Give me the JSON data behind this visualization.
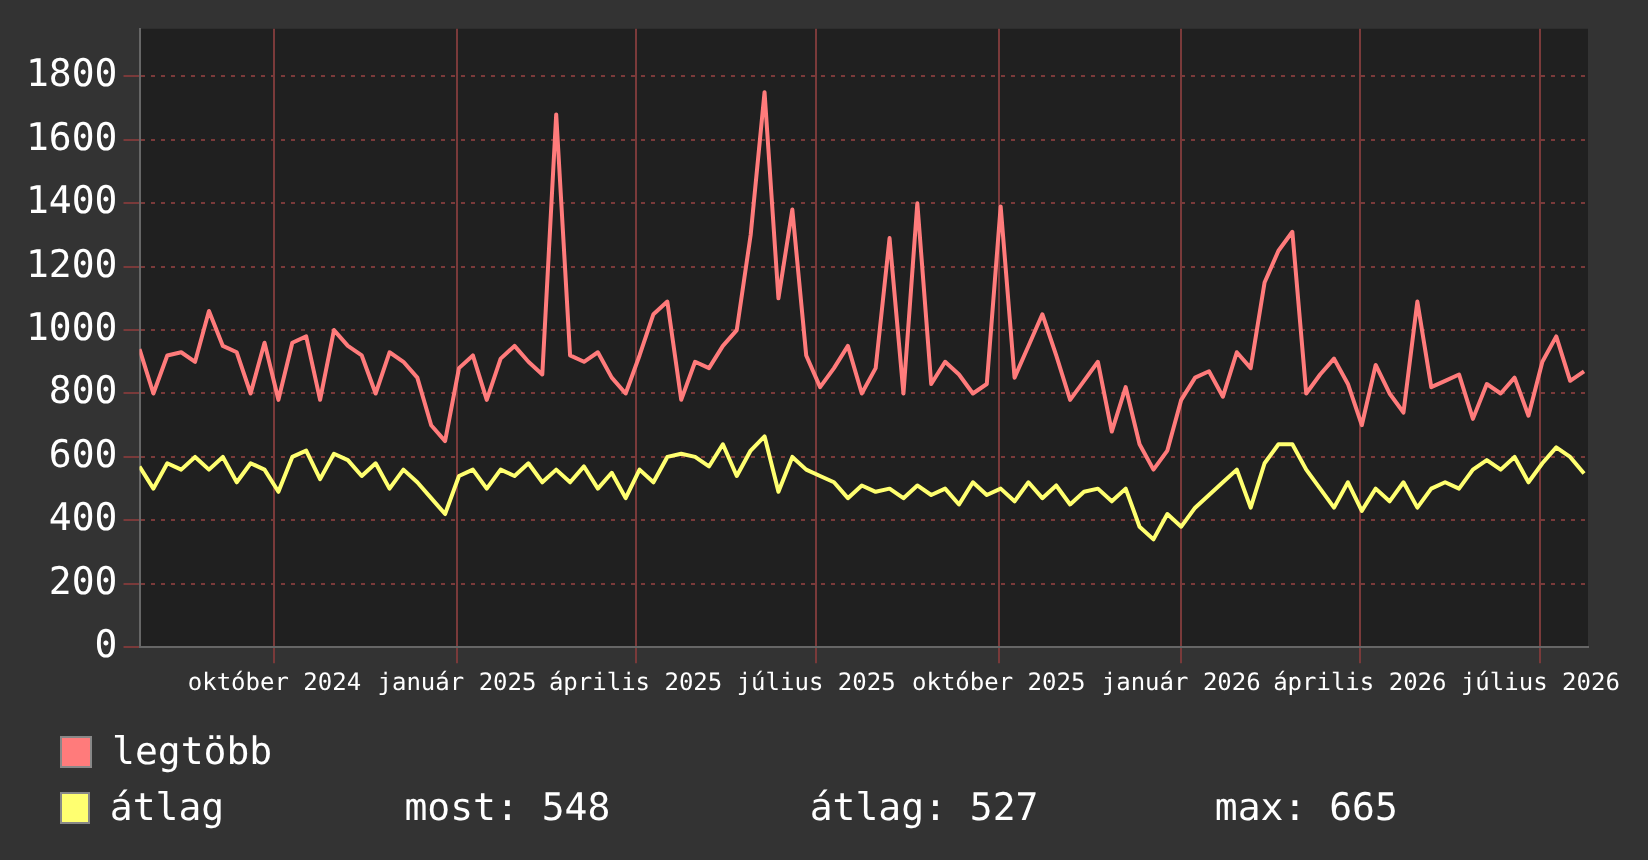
{
  "chart_data": {
    "type": "line",
    "x": [
      "2024-07-25",
      "2024-08-01",
      "2024-08-08",
      "2024-08-15",
      "2024-08-22",
      "2024-08-29",
      "2024-09-05",
      "2024-09-12",
      "2024-09-19",
      "2024-09-26",
      "2024-10-03",
      "2024-10-10",
      "2024-10-17",
      "2024-10-24",
      "2024-10-31",
      "2024-11-07",
      "2024-11-14",
      "2024-11-21",
      "2024-11-28",
      "2024-12-05",
      "2024-12-12",
      "2024-12-19",
      "2024-12-26",
      "2025-01-02",
      "2025-01-09",
      "2025-01-16",
      "2025-01-23",
      "2025-01-30",
      "2025-02-06",
      "2025-02-13",
      "2025-02-20",
      "2025-02-27",
      "2025-03-06",
      "2025-03-13",
      "2025-03-20",
      "2025-03-27",
      "2025-04-03",
      "2025-04-10",
      "2025-04-17",
      "2025-04-24",
      "2025-05-01",
      "2025-05-08",
      "2025-05-15",
      "2025-05-22",
      "2025-05-29",
      "2025-06-05",
      "2025-06-12",
      "2025-06-19",
      "2025-06-26",
      "2025-07-03",
      "2025-07-10",
      "2025-07-17",
      "2025-07-24",
      "2025-07-31",
      "2025-08-07",
      "2025-08-14",
      "2025-08-21",
      "2025-08-28",
      "2025-09-04",
      "2025-09-11",
      "2025-09-18",
      "2025-09-25",
      "2025-10-02",
      "2025-10-09",
      "2025-10-16",
      "2025-10-23",
      "2025-10-30",
      "2025-11-06",
      "2025-11-13",
      "2025-11-20",
      "2025-11-27",
      "2025-12-04",
      "2025-12-11",
      "2025-12-18",
      "2025-12-25",
      "2026-01-01",
      "2026-01-08",
      "2026-01-15",
      "2026-01-22",
      "2026-01-29",
      "2026-02-05",
      "2026-02-12",
      "2026-02-19",
      "2026-02-26",
      "2026-03-05",
      "2026-03-12",
      "2026-03-19",
      "2026-03-26",
      "2026-04-02",
      "2026-04-09",
      "2026-04-16",
      "2026-04-23",
      "2026-04-30",
      "2026-05-07",
      "2026-05-14",
      "2026-05-21",
      "2026-05-28",
      "2026-06-04",
      "2026-06-11",
      "2026-06-18",
      "2026-06-25",
      "2026-07-02",
      "2026-07-09",
      "2026-07-16",
      "2026-07-23"
    ],
    "series": [
      {
        "name": "legtöbb",
        "color": "#ff7b7b",
        "values": [
          940,
          800,
          920,
          930,
          900,
          1060,
          950,
          930,
          800,
          960,
          780,
          960,
          980,
          780,
          1000,
          950,
          920,
          800,
          930,
          900,
          850,
          700,
          650,
          880,
          920,
          780,
          910,
          950,
          900,
          860,
          1680,
          920,
          900,
          930,
          850,
          800,
          920,
          1050,
          1090,
          780,
          900,
          880,
          950,
          1000,
          1300,
          1750,
          1100,
          1380,
          920,
          820,
          880,
          950,
          800,
          880,
          1290,
          800,
          1400,
          830,
          900,
          860,
          800,
          830,
          1390,
          850,
          950,
          1050,
          920,
          780,
          840,
          900,
          680,
          820,
          640,
          560,
          620,
          780,
          850,
          870,
          790,
          930,
          880,
          1150,
          1250,
          1310,
          800,
          860,
          910,
          830,
          700,
          890,
          800,
          740,
          1090,
          820,
          840,
          860,
          720,
          830,
          800,
          850,
          730,
          900,
          980,
          840,
          870
        ]
      },
      {
        "name": "átlag",
        "color": "#ffff70",
        "values": [
          570,
          500,
          580,
          560,
          600,
          560,
          600,
          520,
          580,
          560,
          490,
          600,
          620,
          530,
          610,
          590,
          540,
          580,
          500,
          560,
          520,
          470,
          420,
          540,
          560,
          500,
          560,
          540,
          580,
          520,
          560,
          520,
          570,
          500,
          550,
          470,
          560,
          520,
          600,
          610,
          600,
          570,
          640,
          540,
          620,
          665,
          490,
          600,
          560,
          540,
          520,
          470,
          510,
          490,
          500,
          470,
          510,
          480,
          500,
          450,
          520,
          480,
          500,
          460,
          520,
          470,
          510,
          450,
          490,
          500,
          460,
          500,
          380,
          340,
          420,
          380,
          440,
          480,
          520,
          560,
          440,
          580,
          640,
          640,
          560,
          500,
          440,
          520,
          430,
          500,
          460,
          520,
          440,
          500,
          520,
          500,
          560,
          590,
          560,
          600,
          520,
          580,
          630,
          600,
          548
        ]
      }
    ],
    "xlim": [
      "2024-07-25",
      "2026-07-25"
    ],
    "xticks": [
      {
        "value": "2024-10-01",
        "label": "október 2024"
      },
      {
        "value": "2025-01-01",
        "label": "január 2025"
      },
      {
        "value": "2025-04-01",
        "label": "április 2025"
      },
      {
        "value": "2025-07-01",
        "label": "július 2025"
      },
      {
        "value": "2025-10-01",
        "label": "október 2025"
      },
      {
        "value": "2026-01-01",
        "label": "január 2026"
      },
      {
        "value": "2026-04-01",
        "label": "április 2026"
      },
      {
        "value": "2026-07-01",
        "label": "július 2026"
      }
    ],
    "ylim": [
      0,
      1950
    ],
    "yticks": [
      0,
      200,
      400,
      600,
      800,
      1000,
      1200,
      1400,
      1600,
      1800
    ],
    "grid": true,
    "legend": "bottom left",
    "annotations": [
      "most: 548",
      "átlag: 527",
      "max: 665"
    ]
  }
}
